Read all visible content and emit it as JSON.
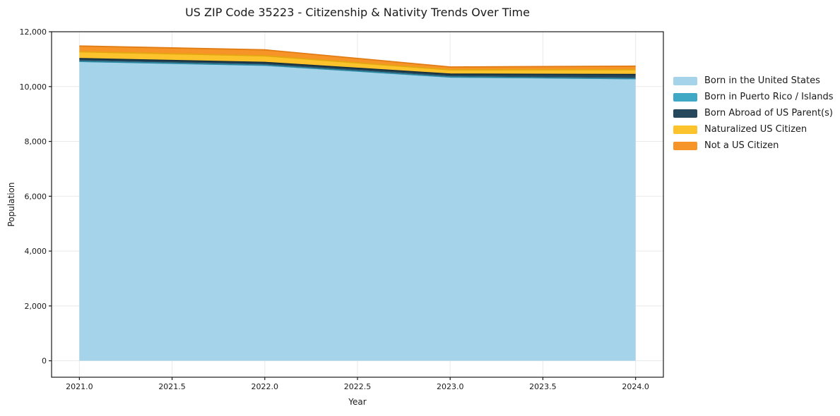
{
  "figure": {
    "title": "US ZIP Code 35223 - Citizenship & Nativity Trends Over Time",
    "xlabel": "Year",
    "ylabel": "Population"
  },
  "chart_data": {
    "type": "area",
    "stacked": true,
    "title": "US ZIP Code 35223 - Citizenship & Nativity Trends Over Time",
    "xlabel": "Year",
    "ylabel": "Population",
    "x": [
      2021,
      2022,
      2023,
      2024
    ],
    "series": [
      {
        "name": "Born in the United States",
        "color": "#a5d3ea",
        "edge": "#79b6d6",
        "values": [
          10920,
          10780,
          10350,
          10290
        ]
      },
      {
        "name": "Born in Puerto Rico / Islands",
        "color": "#3fa9c5",
        "edge": "#2c87a0",
        "values": [
          0,
          0,
          0,
          0
        ]
      },
      {
        "name": "Born Abroad of US Parent(s)",
        "color": "#26485c",
        "edge": "#152f3e",
        "values": [
          100,
          100,
          105,
          150
        ]
      },
      {
        "name": "Naturalized US Citizen",
        "color": "#fcc32d",
        "edge": "#e3a70f",
        "values": [
          250,
          240,
          155,
          175
        ]
      },
      {
        "name": "Not a US Citizen",
        "color": "#f79428",
        "edge": "#e07c14",
        "values": [
          210,
          220,
          105,
          130
        ]
      }
    ],
    "totals": [
      11480,
      11340,
      10715,
      10745
    ],
    "xlim": [
      2020.85,
      2024.15
    ],
    "ylim": [
      -600,
      12000
    ],
    "xtick_values": [
      2021.0,
      2021.5,
      2022.0,
      2022.5,
      2023.0,
      2023.5,
      2024.0
    ],
    "xticks": [
      "2021.0",
      "2021.5",
      "2022.0",
      "2022.5",
      "2023.0",
      "2023.5",
      "2024.0"
    ],
    "ytick_values": [
      0,
      2000,
      4000,
      6000,
      8000,
      10000,
      12000
    ],
    "yticks": [
      "0",
      "2,000",
      "4,000",
      "6,000",
      "8,000",
      "10,000",
      "12,000"
    ],
    "grid": true,
    "grid_color": "#e9e9e9",
    "spine_color": "#1a1a1a",
    "legend_position": "right"
  }
}
